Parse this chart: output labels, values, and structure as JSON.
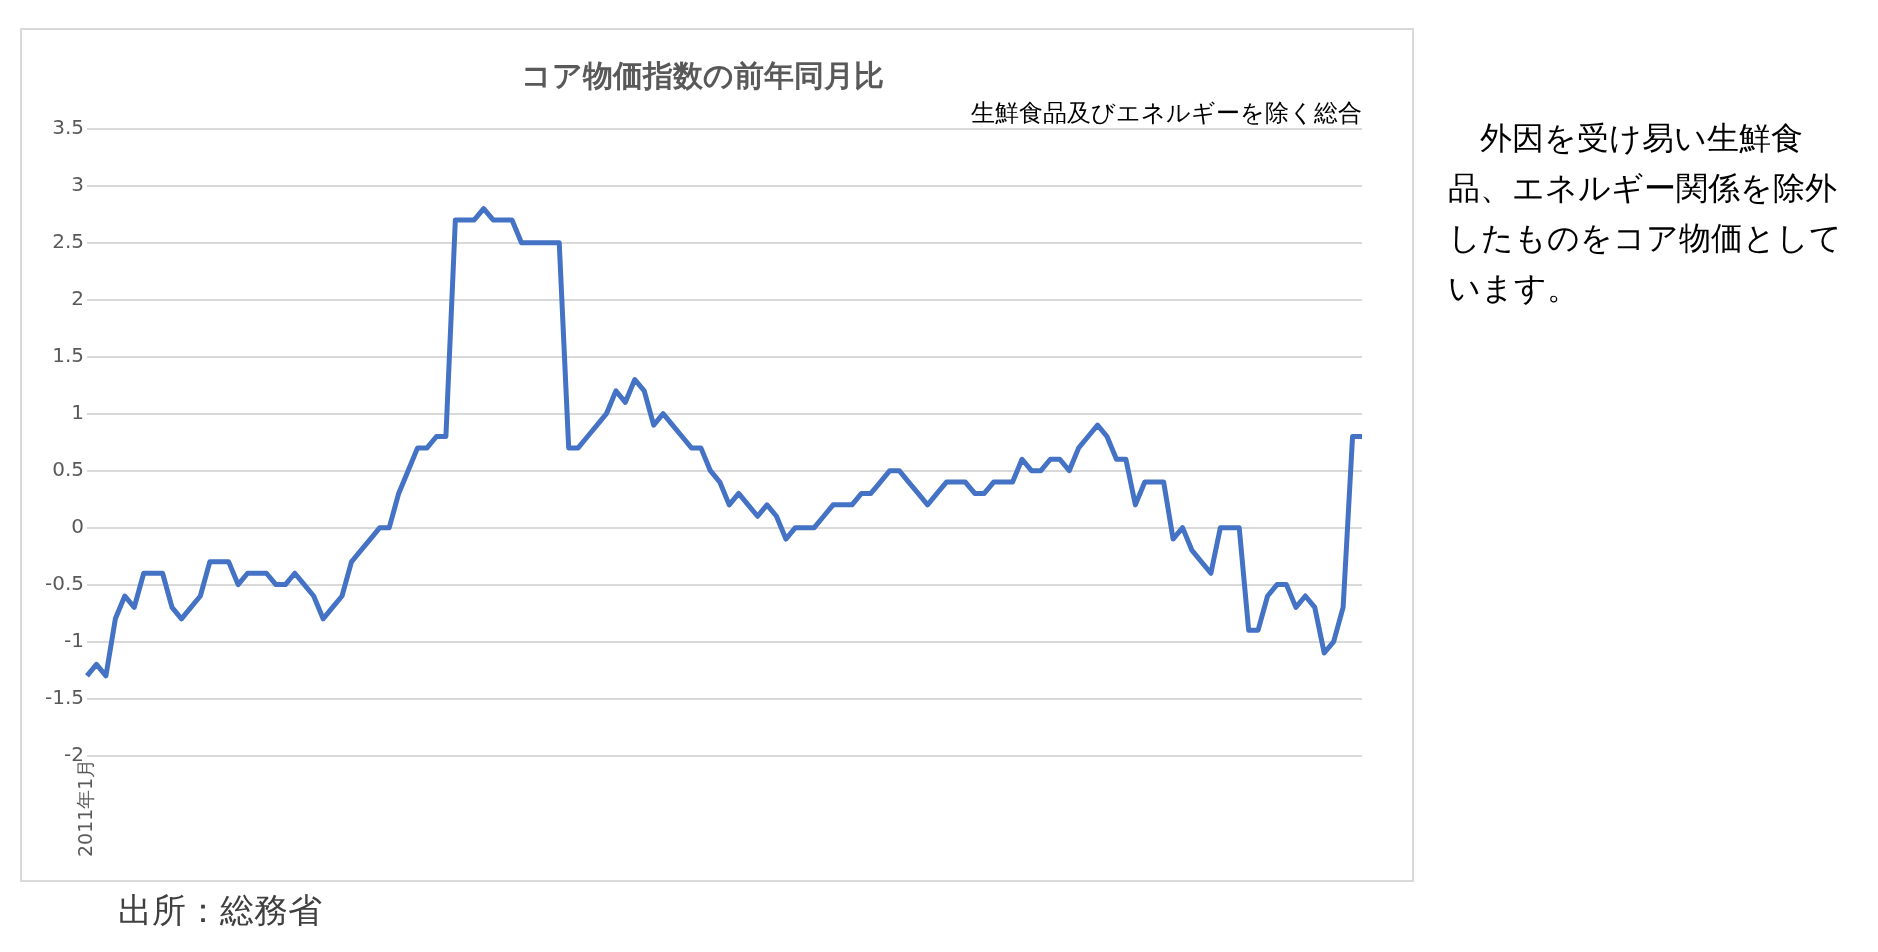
{
  "chart_data": {
    "type": "line",
    "title": "コア物価指数の前年同月比",
    "subtitle": "生鮮食品及びエネルギーを除く総合",
    "categories": [
      "2011年1月",
      null,
      null,
      null,
      null,
      null,
      null,
      null,
      null,
      null,
      null,
      null,
      null,
      null,
      null,
      null,
      null,
      null,
      null,
      null,
      null,
      null,
      null,
      null,
      null,
      null,
      null,
      null,
      null,
      null,
      null,
      null,
      null,
      null,
      null,
      null,
      null,
      null,
      null,
      null,
      null,
      null,
      null,
      null,
      null,
      null,
      null,
      null,
      null,
      null,
      null,
      null,
      null,
      null,
      null,
      null,
      null,
      null,
      null,
      null,
      null,
      null,
      null,
      null,
      null,
      null,
      null,
      null,
      null,
      null,
      null,
      null,
      null,
      null,
      null,
      null,
      null,
      null,
      null,
      null,
      null,
      null,
      null,
      null,
      null,
      null,
      null,
      null,
      null,
      null,
      null,
      null,
      null,
      null,
      null,
      null,
      null,
      null,
      null,
      null,
      null,
      null,
      null,
      null,
      null,
      null,
      null,
      null,
      null,
      null,
      null,
      null,
      null,
      null,
      null,
      null,
      null,
      null,
      null,
      null,
      null,
      null,
      null,
      null,
      null,
      null,
      null,
      null,
      null,
      null,
      null,
      null,
      null,
      null,
      null,
      null
    ],
    "series": [
      {
        "color": "#4472c4",
        "values": [
          -1.3,
          -1.2,
          -1.3,
          -0.8,
          -0.6,
          -0.7,
          -0.4,
          -0.4,
          -0.4,
          -0.7,
          -0.8,
          -0.7,
          -0.6,
          -0.3,
          -0.3,
          -0.3,
          -0.5,
          -0.4,
          -0.4,
          -0.4,
          -0.5,
          -0.5,
          -0.4,
          -0.5,
          -0.6,
          -0.8,
          -0.7,
          -0.6,
          -0.3,
          -0.2,
          -0.1,
          0,
          0,
          0.3,
          0.5,
          0.7,
          0.7,
          0.8,
          0.8,
          2.7,
          2.7,
          2.7,
          2.8,
          2.7,
          2.7,
          2.7,
          2.5,
          2.5,
          2.5,
          2.5,
          2.5,
          0.7,
          0.7,
          0.8,
          0.9,
          1.0,
          1.2,
          1.1,
          1.3,
          1.2,
          0.9,
          1.0,
          0.9,
          0.8,
          0.7,
          0.7,
          0.5,
          0.4,
          0.2,
          0.3,
          0.2,
          0.1,
          0.2,
          0.1,
          -0.1,
          0,
          0,
          0,
          0.1,
          0.2,
          0.2,
          0.2,
          0.3,
          0.3,
          0.4,
          0.5,
          0.5,
          0.4,
          0.3,
          0.2,
          0.3,
          0.4,
          0.4,
          0.4,
          0.3,
          0.3,
          0.4,
          0.4,
          0.4,
          0.6,
          0.5,
          0.5,
          0.6,
          0.6,
          0.5,
          0.7,
          0.8,
          0.9,
          0.8,
          0.6,
          0.6,
          0.2,
          0.4,
          0.4,
          0.4,
          -0.1,
          0,
          -0.2,
          -0.3,
          -0.4,
          0,
          0,
          0,
          -0.9,
          -0.9,
          -0.6,
          -0.5,
          -0.5,
          -0.7,
          -0.6,
          -0.7,
          -1.1,
          -1.0,
          -0.7,
          0.8,
          0.8
        ]
      }
    ],
    "ylim": [
      -2,
      3.5
    ],
    "yticks": [
      -2,
      -1.5,
      -1,
      -0.5,
      0,
      0.5,
      1,
      1.5,
      2,
      2.5,
      3,
      3.5
    ],
    "grid": "y",
    "marker": "none",
    "line_style": "solid",
    "annotations": [
      "　外因を受け易い生鮮食品、エネルギー関係を除外したものをコア物価としています。",
      "出所：総務省"
    ]
  }
}
